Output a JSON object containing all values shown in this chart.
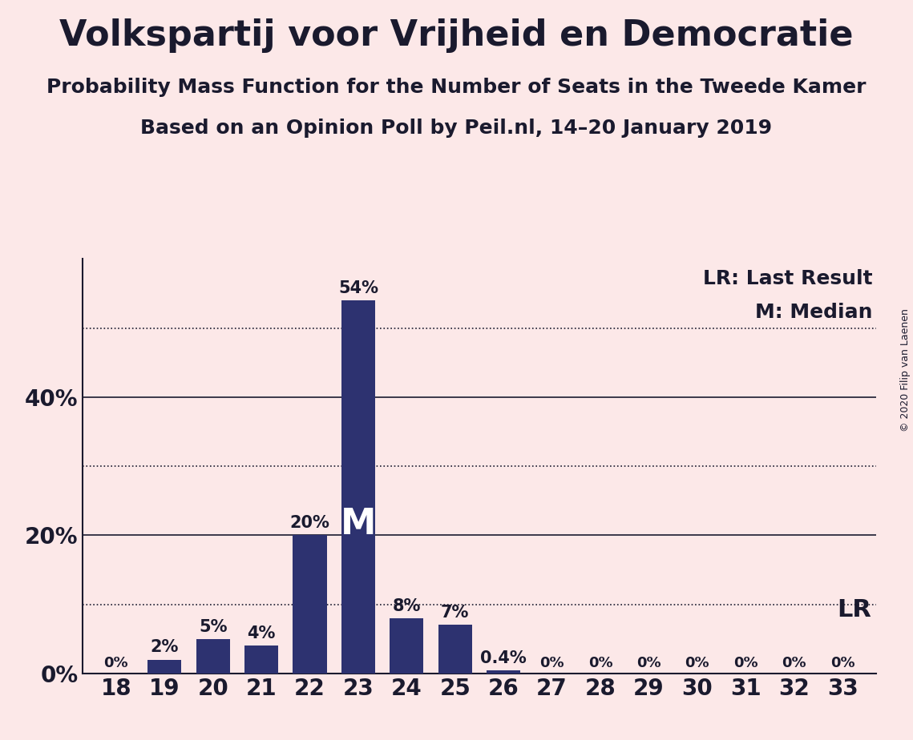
{
  "title": "Volkspartij voor Vrijheid en Democratie",
  "subtitle1": "Probability Mass Function for the Number of Seats in the Tweede Kamer",
  "subtitle2": "Based on an Opinion Poll by Peil.nl, 14–20 January 2019",
  "copyright": "© 2020 Filip van Laenen",
  "seats": [
    18,
    19,
    20,
    21,
    22,
    23,
    24,
    25,
    26,
    27,
    28,
    29,
    30,
    31,
    32,
    33
  ],
  "probabilities": [
    0.0,
    0.02,
    0.05,
    0.04,
    0.2,
    0.54,
    0.08,
    0.07,
    0.004,
    0.0,
    0.0,
    0.0,
    0.0,
    0.0,
    0.0,
    0.0
  ],
  "bar_color": "#2d3270",
  "background_color": "#fce8e8",
  "axis_color": "#1a1a2e",
  "median_seat": 23,
  "lr_seat": 33,
  "lr_label": "LR",
  "median_label": "M",
  "legend_lr": "LR: Last Result",
  "legend_m": "M: Median",
  "yticks": [
    0.0,
    0.2,
    0.4
  ],
  "ytick_labels": [
    "0%",
    "20%",
    "40%"
  ],
  "dotted_lines": [
    0.1,
    0.3,
    0.5
  ],
  "solid_lines": [
    0.0,
    0.2,
    0.4
  ],
  "bar_label_map": {
    "18": "0%",
    "19": "2%",
    "20": "5%",
    "21": "4%",
    "22": "20%",
    "23": "54%",
    "24": "8%",
    "25": "7%",
    "26": "0.4%",
    "27": "0%",
    "28": "0%",
    "29": "0%",
    "30": "0%",
    "31": "0%",
    "32": "0%",
    "33": "0%"
  },
  "title_fontsize": 32,
  "subtitle_fontsize": 18,
  "tick_fontsize": 20,
  "bar_label_fontsize": 15,
  "legend_fontsize": 18,
  "median_fontsize": 32,
  "lr_fontsize": 22
}
